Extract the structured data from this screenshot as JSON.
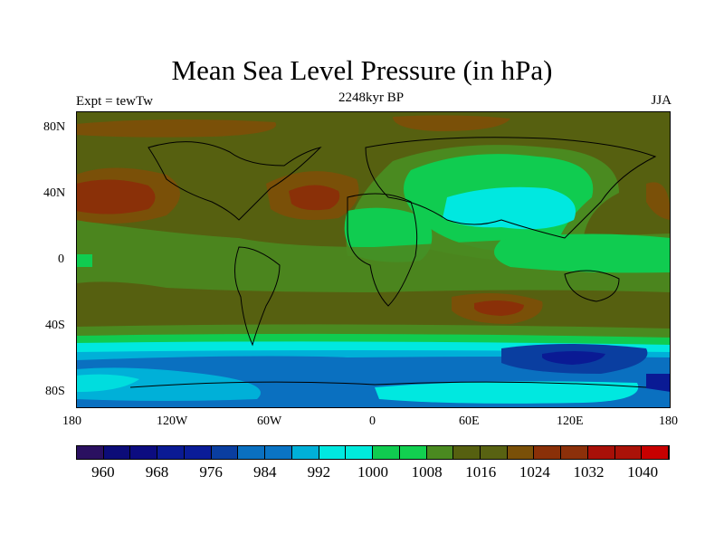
{
  "title": "Mean Sea Level Pressure (in hPa)",
  "left_label": "Expt = tewTw",
  "center_label": "2248kyr BP",
  "right_label": "JJA",
  "chart_data": {
    "type": "heatmap",
    "variable": "Mean Sea Level Pressure",
    "units": "hPa",
    "x_ticks": [
      "180",
      "120W",
      "60W",
      "0",
      "60E",
      "120E",
      "180"
    ],
    "y_ticks": [
      "80N",
      "40N",
      "0",
      "40S",
      "80S"
    ],
    "lon_range": [
      -180,
      180
    ],
    "lat_range": [
      -90,
      90
    ],
    "colorbar": {
      "levels_min": 956,
      "levels_max": 1040,
      "step": 4,
      "labels": [
        "960",
        "968",
        "976",
        "984",
        "992",
        "1000",
        "1008",
        "1016",
        "1024",
        "1032",
        "1040"
      ],
      "colors": [
        "#2a1060",
        "#0c0c78",
        "#0c0c80",
        "#0a1a94",
        "#0a1c98",
        "#0a3ea0",
        "#0a70c0",
        "#0a74c4",
        "#00b0d8",
        "#00e8e0",
        "#00eadc",
        "#10cc50",
        "#12d050",
        "#4a8a20",
        "#566010",
        "#586212",
        "#7a5008",
        "#8a3008",
        "#8c300a",
        "#a81008",
        "#aa1208",
        "#c80000"
      ]
    }
  }
}
